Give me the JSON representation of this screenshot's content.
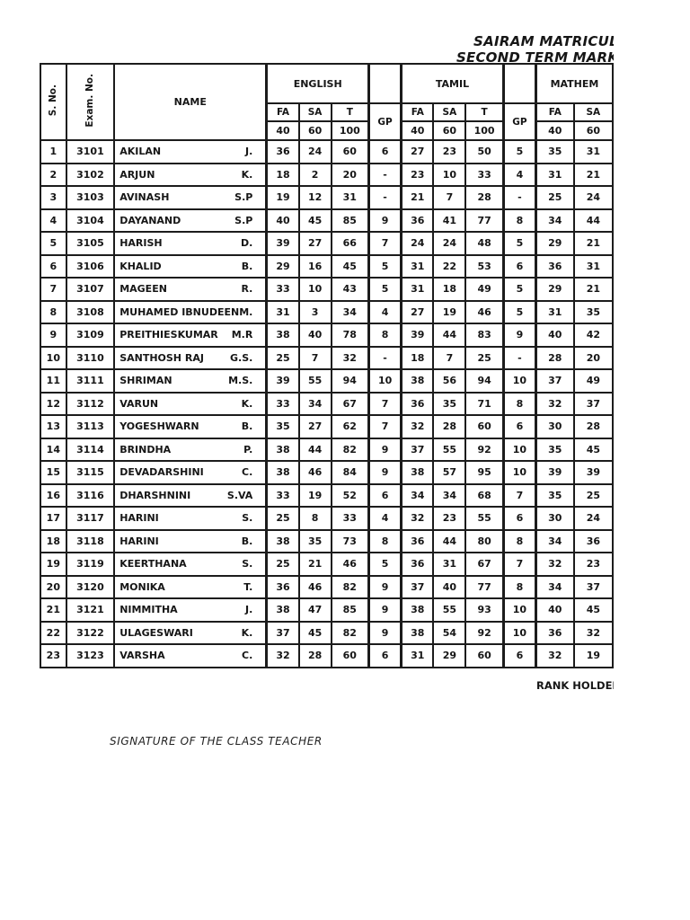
{
  "header": {
    "title_line1": "SAIRAM MATRICULA",
    "title_line2": "SECOND TERM MARK LIS"
  },
  "table": {
    "headers": {
      "s_no": "S. No.",
      "exam_no": "Exam. No.",
      "name": "NAME",
      "subject_english": "ENGLISH",
      "subject_tamil": "TAMIL",
      "subject_maths": "MATHEM",
      "col_fa": "FA",
      "col_sa": "SA",
      "col_t": "T",
      "col_gp": "GP",
      "max_fa": "40",
      "max_sa": "60",
      "max_t": "100"
    },
    "rows": [
      {
        "s_no": "1",
        "exam_no": "3101",
        "name": "AKILAN",
        "initial": "J.",
        "english": [
          "36",
          "24",
          "60",
          "6"
        ],
        "tamil": [
          "27",
          "23",
          "50",
          "5"
        ],
        "maths": [
          "35",
          "31"
        ]
      },
      {
        "s_no": "2",
        "exam_no": "3102",
        "name": "ARJUN",
        "initial": "K.",
        "english": [
          "18",
          "2",
          "20",
          "-"
        ],
        "tamil": [
          "23",
          "10",
          "33",
          "4"
        ],
        "maths": [
          "31",
          "21"
        ]
      },
      {
        "s_no": "3",
        "exam_no": "3103",
        "name": "AVINASH",
        "initial": "S.P",
        "english": [
          "19",
          "12",
          "31",
          "-"
        ],
        "tamil": [
          "21",
          "7",
          "28",
          "-"
        ],
        "maths": [
          "25",
          "24"
        ]
      },
      {
        "s_no": "4",
        "exam_no": "3104",
        "name": "DAYANAND",
        "initial": "S.P",
        "english": [
          "40",
          "45",
          "85",
          "9"
        ],
        "tamil": [
          "36",
          "41",
          "77",
          "8"
        ],
        "maths": [
          "34",
          "44"
        ]
      },
      {
        "s_no": "5",
        "exam_no": "3105",
        "name": "HARISH",
        "initial": "D.",
        "english": [
          "39",
          "27",
          "66",
          "7"
        ],
        "tamil": [
          "24",
          "24",
          "48",
          "5"
        ],
        "maths": [
          "29",
          "21"
        ]
      },
      {
        "s_no": "6",
        "exam_no": "3106",
        "name": "KHALID",
        "initial": "B.",
        "english": [
          "29",
          "16",
          "45",
          "5"
        ],
        "tamil": [
          "31",
          "22",
          "53",
          "6"
        ],
        "maths": [
          "36",
          "31"
        ]
      },
      {
        "s_no": "7",
        "exam_no": "3107",
        "name": "MAGEEN",
        "initial": "R.",
        "english": [
          "33",
          "10",
          "43",
          "5"
        ],
        "tamil": [
          "31",
          "18",
          "49",
          "5"
        ],
        "maths": [
          "29",
          "21"
        ]
      },
      {
        "s_no": "8",
        "exam_no": "3108",
        "name": "MUHAMED IBNUDEEN",
        "initial": "M.",
        "english": [
          "31",
          "3",
          "34",
          "4"
        ],
        "tamil": [
          "27",
          "19",
          "46",
          "5"
        ],
        "maths": [
          "31",
          "35"
        ]
      },
      {
        "s_no": "9",
        "exam_no": "3109",
        "name": "PREITHIESKUMAR",
        "initial": "M.R",
        "english": [
          "38",
          "40",
          "78",
          "8"
        ],
        "tamil": [
          "39",
          "44",
          "83",
          "9"
        ],
        "maths": [
          "40",
          "42"
        ]
      },
      {
        "s_no": "10",
        "exam_no": "3110",
        "name": "SANTHOSH RAJ",
        "initial": "G.S.",
        "english": [
          "25",
          "7",
          "32",
          "-"
        ],
        "tamil": [
          "18",
          "7",
          "25",
          "-"
        ],
        "maths": [
          "28",
          "20"
        ]
      },
      {
        "s_no": "11",
        "exam_no": "3111",
        "name": "SHRIMAN",
        "initial": "M.S.",
        "english": [
          "39",
          "55",
          "94",
          "10"
        ],
        "tamil": [
          "38",
          "56",
          "94",
          "10"
        ],
        "maths": [
          "37",
          "49"
        ]
      },
      {
        "s_no": "12",
        "exam_no": "3112",
        "name": "VARUN",
        "initial": "K.",
        "english": [
          "33",
          "34",
          "67",
          "7"
        ],
        "tamil": [
          "36",
          "35",
          "71",
          "8"
        ],
        "maths": [
          "32",
          "37"
        ]
      },
      {
        "s_no": "13",
        "exam_no": "3113",
        "name": "YOGESHWARN",
        "initial": "B.",
        "english": [
          "35",
          "27",
          "62",
          "7"
        ],
        "tamil": [
          "32",
          "28",
          "60",
          "6"
        ],
        "maths": [
          "30",
          "28"
        ]
      },
      {
        "s_no": "14",
        "exam_no": "3114",
        "name": "BRINDHA",
        "initial": "P.",
        "english": [
          "38",
          "44",
          "82",
          "9"
        ],
        "tamil": [
          "37",
          "55",
          "92",
          "10"
        ],
        "maths": [
          "35",
          "45"
        ]
      },
      {
        "s_no": "15",
        "exam_no": "3115",
        "name": "DEVADARSHINI",
        "initial": "C.",
        "english": [
          "38",
          "46",
          "84",
          "9"
        ],
        "tamil": [
          "38",
          "57",
          "95",
          "10"
        ],
        "maths": [
          "39",
          "39"
        ]
      },
      {
        "s_no": "16",
        "exam_no": "3116",
        "name": "DHARSHNINI",
        "initial": "S.VA",
        "english": [
          "33",
          "19",
          "52",
          "6"
        ],
        "tamil": [
          "34",
          "34",
          "68",
          "7"
        ],
        "maths": [
          "35",
          "25"
        ]
      },
      {
        "s_no": "17",
        "exam_no": "3117",
        "name": "HARINI",
        "initial": "S.",
        "english": [
          "25",
          "8",
          "33",
          "4"
        ],
        "tamil": [
          "32",
          "23",
          "55",
          "6"
        ],
        "maths": [
          "30",
          "24"
        ]
      },
      {
        "s_no": "18",
        "exam_no": "3118",
        "name": "HARINI",
        "initial": "B.",
        "english": [
          "38",
          "35",
          "73",
          "8"
        ],
        "tamil": [
          "36",
          "44",
          "80",
          "8"
        ],
        "maths": [
          "34",
          "36"
        ]
      },
      {
        "s_no": "19",
        "exam_no": "3119",
        "name": "KEERTHANA",
        "initial": "S.",
        "english": [
          "25",
          "21",
          "46",
          "5"
        ],
        "tamil": [
          "36",
          "31",
          "67",
          "7"
        ],
        "maths": [
          "32",
          "23"
        ]
      },
      {
        "s_no": "20",
        "exam_no": "3120",
        "name": "MONIKA",
        "initial": "T.",
        "english": [
          "36",
          "46",
          "82",
          "9"
        ],
        "tamil": [
          "37",
          "40",
          "77",
          "8"
        ],
        "maths": [
          "34",
          "37"
        ]
      },
      {
        "s_no": "21",
        "exam_no": "3121",
        "name": "NIMMITHA",
        "initial": "J.",
        "english": [
          "38",
          "47",
          "85",
          "9"
        ],
        "tamil": [
          "38",
          "55",
          "93",
          "10"
        ],
        "maths": [
          "40",
          "45"
        ]
      },
      {
        "s_no": "22",
        "exam_no": "3122",
        "name": "ULAGESWARI",
        "initial": "K.",
        "english": [
          "37",
          "45",
          "82",
          "9"
        ],
        "tamil": [
          "38",
          "54",
          "92",
          "10"
        ],
        "maths": [
          "36",
          "32"
        ]
      },
      {
        "s_no": "23",
        "exam_no": "3123",
        "name": "VARSHA",
        "initial": "C.",
        "english": [
          "32",
          "28",
          "60",
          "6"
        ],
        "tamil": [
          "31",
          "29",
          "60",
          "6"
        ],
        "maths": [
          "32",
          "19"
        ]
      }
    ]
  },
  "footer": {
    "rank_holder": "RANK HOLDER",
    "signature": "SIGNATURE OF THE CLASS TEACHER"
  },
  "colors": {
    "ink": "#161616",
    "border": "#1c1c1c",
    "page_bg": "#ffffff"
  }
}
